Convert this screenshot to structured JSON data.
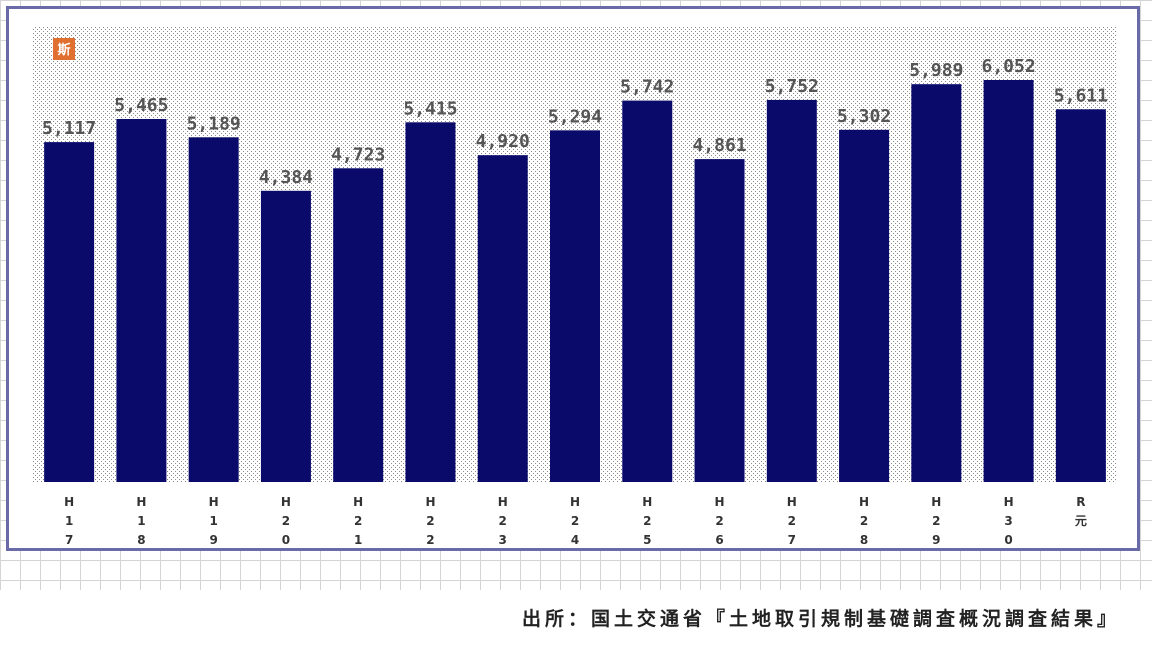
{
  "chart_data": {
    "type": "bar",
    "categories": [
      "H17",
      "H18",
      "H19",
      "H20",
      "H21",
      "H22",
      "H23",
      "H24",
      "H25",
      "H26",
      "H27",
      "H28",
      "H29",
      "H30",
      "R元"
    ],
    "tick_labels": [
      [
        "H",
        "1",
        "7"
      ],
      [
        "H",
        "1",
        "8"
      ],
      [
        "H",
        "1",
        "9"
      ],
      [
        "H",
        "2",
        "0"
      ],
      [
        "H",
        "2",
        "1"
      ],
      [
        "H",
        "2",
        "2"
      ],
      [
        "H",
        "2",
        "3"
      ],
      [
        "H",
        "2",
        "4"
      ],
      [
        "H",
        "2",
        "5"
      ],
      [
        "H",
        "2",
        "6"
      ],
      [
        "H",
        "2",
        "7"
      ],
      [
        "H",
        "2",
        "8"
      ],
      [
        "H",
        "2",
        "9"
      ],
      [
        "H",
        "3",
        "0"
      ],
      [
        "R",
        "元"
      ]
    ],
    "values": [
      5117,
      5465,
      5189,
      4384,
      4723,
      5415,
      4920,
      5294,
      5742,
      4861,
      5752,
      5302,
      5989,
      6052,
      5611
    ],
    "data_labels": [
      "5,117",
      "5,465",
      "5,189",
      "4,384",
      "4,723",
      "5,415",
      "4,920",
      "5,294",
      "5,742",
      "4,861",
      "5,752",
      "5,302",
      "5,989",
      "6,052",
      "5,611"
    ],
    "ylim": [
      0,
      6500
    ],
    "grid": false,
    "bar_color": "#0a0a6a",
    "title": "",
    "xlabel": "",
    "ylabel": ""
  },
  "logo": {
    "icon": "orange-square-logo",
    "text": "斯",
    "color": "#e07030"
  },
  "source": "出所：国土交通省『土地取引規制基礎調査概況調査結果』"
}
